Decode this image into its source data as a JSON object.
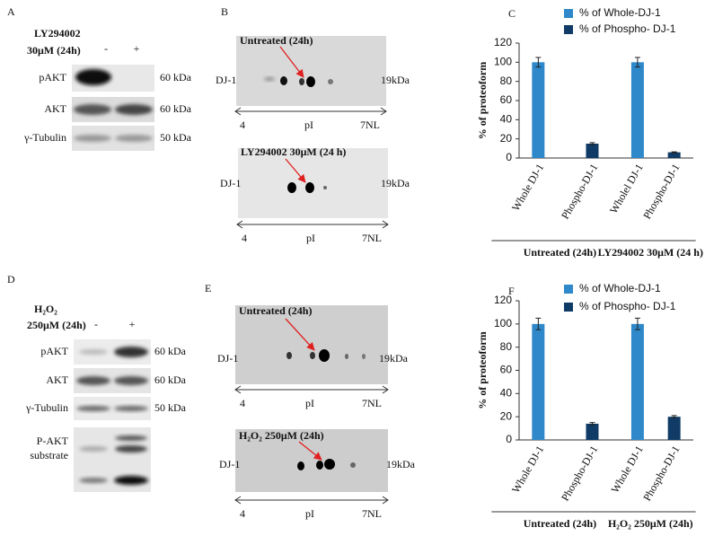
{
  "blots": [
    {
      "label": "A",
      "treatment": [
        "LY294002",
        "30μM (24h)"
      ],
      "lanes": [
        "-",
        "+"
      ],
      "rows": [
        {
          "name": [
            "pAKT"
          ],
          "size": "60 kDa"
        },
        {
          "name": [
            "AKT"
          ],
          "size": "60 kDa"
        },
        {
          "name": [
            "γ-Tubulin"
          ],
          "size": "50 kDa"
        }
      ]
    },
    {
      "label": "D",
      "treatment": [
        "H₂O₂",
        "250μM (24h)"
      ],
      "lanes": [
        "-",
        "+"
      ],
      "rows": [
        {
          "name": [
            "pAKT"
          ],
          "size": "60 kDa"
        },
        {
          "name": [
            "AKT"
          ],
          "size": "60 kDa"
        },
        {
          "name": [
            "γ-Tubulin"
          ],
          "size": "50 kDa"
        },
        {
          "name": [
            "P-AKT",
            "substrate"
          ]
        }
      ]
    }
  ],
  "gels": [
    {
      "label": "B",
      "panels": [
        {
          "title": "Untreated (24h)",
          "protein": "DJ-1",
          "size": "19kDa",
          "axis": [
            "4",
            "pI",
            "7NL"
          ]
        },
        {
          "title": "LY294002 30μM  (24 h)",
          "protein": "DJ-1",
          "size": "19kDa",
          "axis": [
            "4",
            "pI",
            "7NL"
          ]
        }
      ]
    },
    {
      "label": "E",
      "panels": [
        {
          "title": "Untreated (24h)",
          "protein": "DJ-1",
          "size": "19kDa",
          "axis": [
            "4",
            "pI",
            "7NL"
          ]
        },
        {
          "title": "H₂O₂ 250μM (24h)",
          "protein": "DJ-1",
          "size": "19kDa",
          "axis": [
            "4",
            "pI",
            "7NL"
          ]
        }
      ]
    }
  ],
  "chart_data": [
    {
      "type": "bar",
      "label": "C",
      "y_label": "% of proteoform",
      "categories": [
        "Whole DJ-1",
        "Phospho-DJ-1",
        "Wholel DJ-1",
        "Phospho-DJ-1"
      ],
      "groups": [
        "Untreated (24h)",
        "LY294002 30μM  (24 h)"
      ],
      "series": [
        {
          "name": "% of Whole-DJ-1",
          "color": "#2f88c9",
          "values": [
            100,
            null,
            100,
            null
          ],
          "errors": [
            5,
            null,
            5,
            null
          ]
        },
        {
          "name": "% of Phospho- DJ-1",
          "color": "#0f3b66",
          "values": [
            null,
            15,
            null,
            6
          ],
          "errors": [
            null,
            1,
            null,
            0.5
          ]
        }
      ],
      "ylim": [
        0,
        120
      ],
      "yticks": [
        0,
        20,
        40,
        60,
        80,
        100,
        120
      ]
    },
    {
      "type": "bar",
      "label": "F",
      "y_label": "% of proteoform",
      "categories": [
        "Whole DJ-1",
        "Phospho-DJ-1",
        "Whole DJ-1",
        "Phospho-DJ-1"
      ],
      "groups": [
        "Untreated (24h)",
        "H₂O₂  250μM (24h)"
      ],
      "series": [
        {
          "name": "% of Whole-DJ-1",
          "color": "#2f88c9",
          "values": [
            100,
            null,
            100,
            null
          ],
          "errors": [
            5,
            null,
            5,
            null
          ]
        },
        {
          "name": "% of Phospho- DJ-1",
          "color": "#0f3b66",
          "values": [
            null,
            14,
            null,
            20
          ],
          "errors": [
            null,
            1,
            null,
            1
          ]
        }
      ],
      "ylim": [
        0,
        120
      ],
      "yticks": [
        0,
        20,
        40,
        60,
        80,
        100,
        120
      ]
    }
  ]
}
